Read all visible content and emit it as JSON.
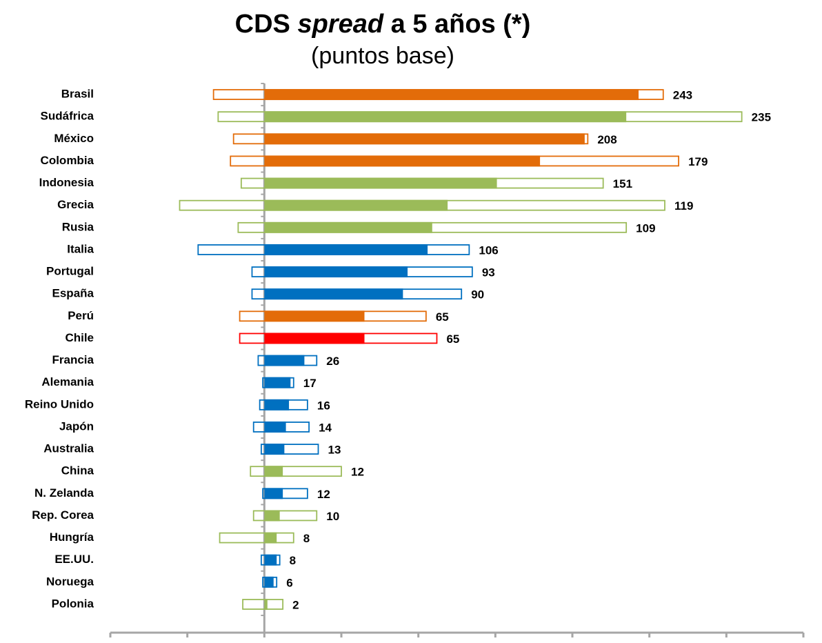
{
  "chart_data": {
    "type": "range-bar",
    "title": {
      "pre": "CDS",
      "em": "spread",
      "post": "a 5 años (*)"
    },
    "subtitle": "(puntos base)",
    "categories": [
      "Brasil",
      "Sudáfrica",
      "México",
      "Colombia",
      "Indonesia",
      "Grecia",
      "Rusia",
      "Italia",
      "Portugal",
      "España",
      "Perú",
      "Chile",
      "Francia",
      "Alemania",
      "Reino Unido",
      "Japón",
      "Australia",
      "China",
      "N. Zelanda",
      "Rep. Corea",
      "Hungría",
      "EE.UU.",
      "Noruega",
      "Polonia"
    ],
    "values": [
      243,
      235,
      208,
      179,
      151,
      119,
      109,
      106,
      93,
      90,
      65,
      65,
      26,
      17,
      16,
      14,
      13,
      12,
      12,
      10,
      8,
      8,
      6,
      2
    ],
    "range_low": [
      -33,
      -30,
      -20,
      -22,
      -15,
      -55,
      -17,
      -43,
      -8,
      -8,
      -16,
      -16,
      -4,
      -1,
      -3,
      -7,
      -2,
      -9,
      -1,
      -7,
      -29,
      -2,
      -1,
      -14
    ],
    "range_high": [
      259,
      310,
      210,
      269,
      220,
      260,
      235,
      133,
      135,
      128,
      105,
      112,
      34,
      19,
      28,
      29,
      35,
      50,
      28,
      34,
      19,
      10,
      8,
      12
    ],
    "colors": [
      "#e36c09",
      "#9bbb59",
      "#e36c09",
      "#e36c09",
      "#9bbb59",
      "#9bbb59",
      "#9bbb59",
      "#0070c0",
      "#0070c0",
      "#0070c0",
      "#e36c09",
      "#ff0000",
      "#0070c0",
      "#0070c0",
      "#0070c0",
      "#0070c0",
      "#0070c0",
      "#9bbb59",
      "#0070c0",
      "#9bbb59",
      "#9bbb59",
      "#0070c0",
      "#0070c0",
      "#9bbb59"
    ],
    "xlim": [
      -100,
      350
    ],
    "xticks": [
      -100,
      -50,
      0,
      50,
      100,
      150,
      200,
      250,
      300,
      350
    ]
  }
}
